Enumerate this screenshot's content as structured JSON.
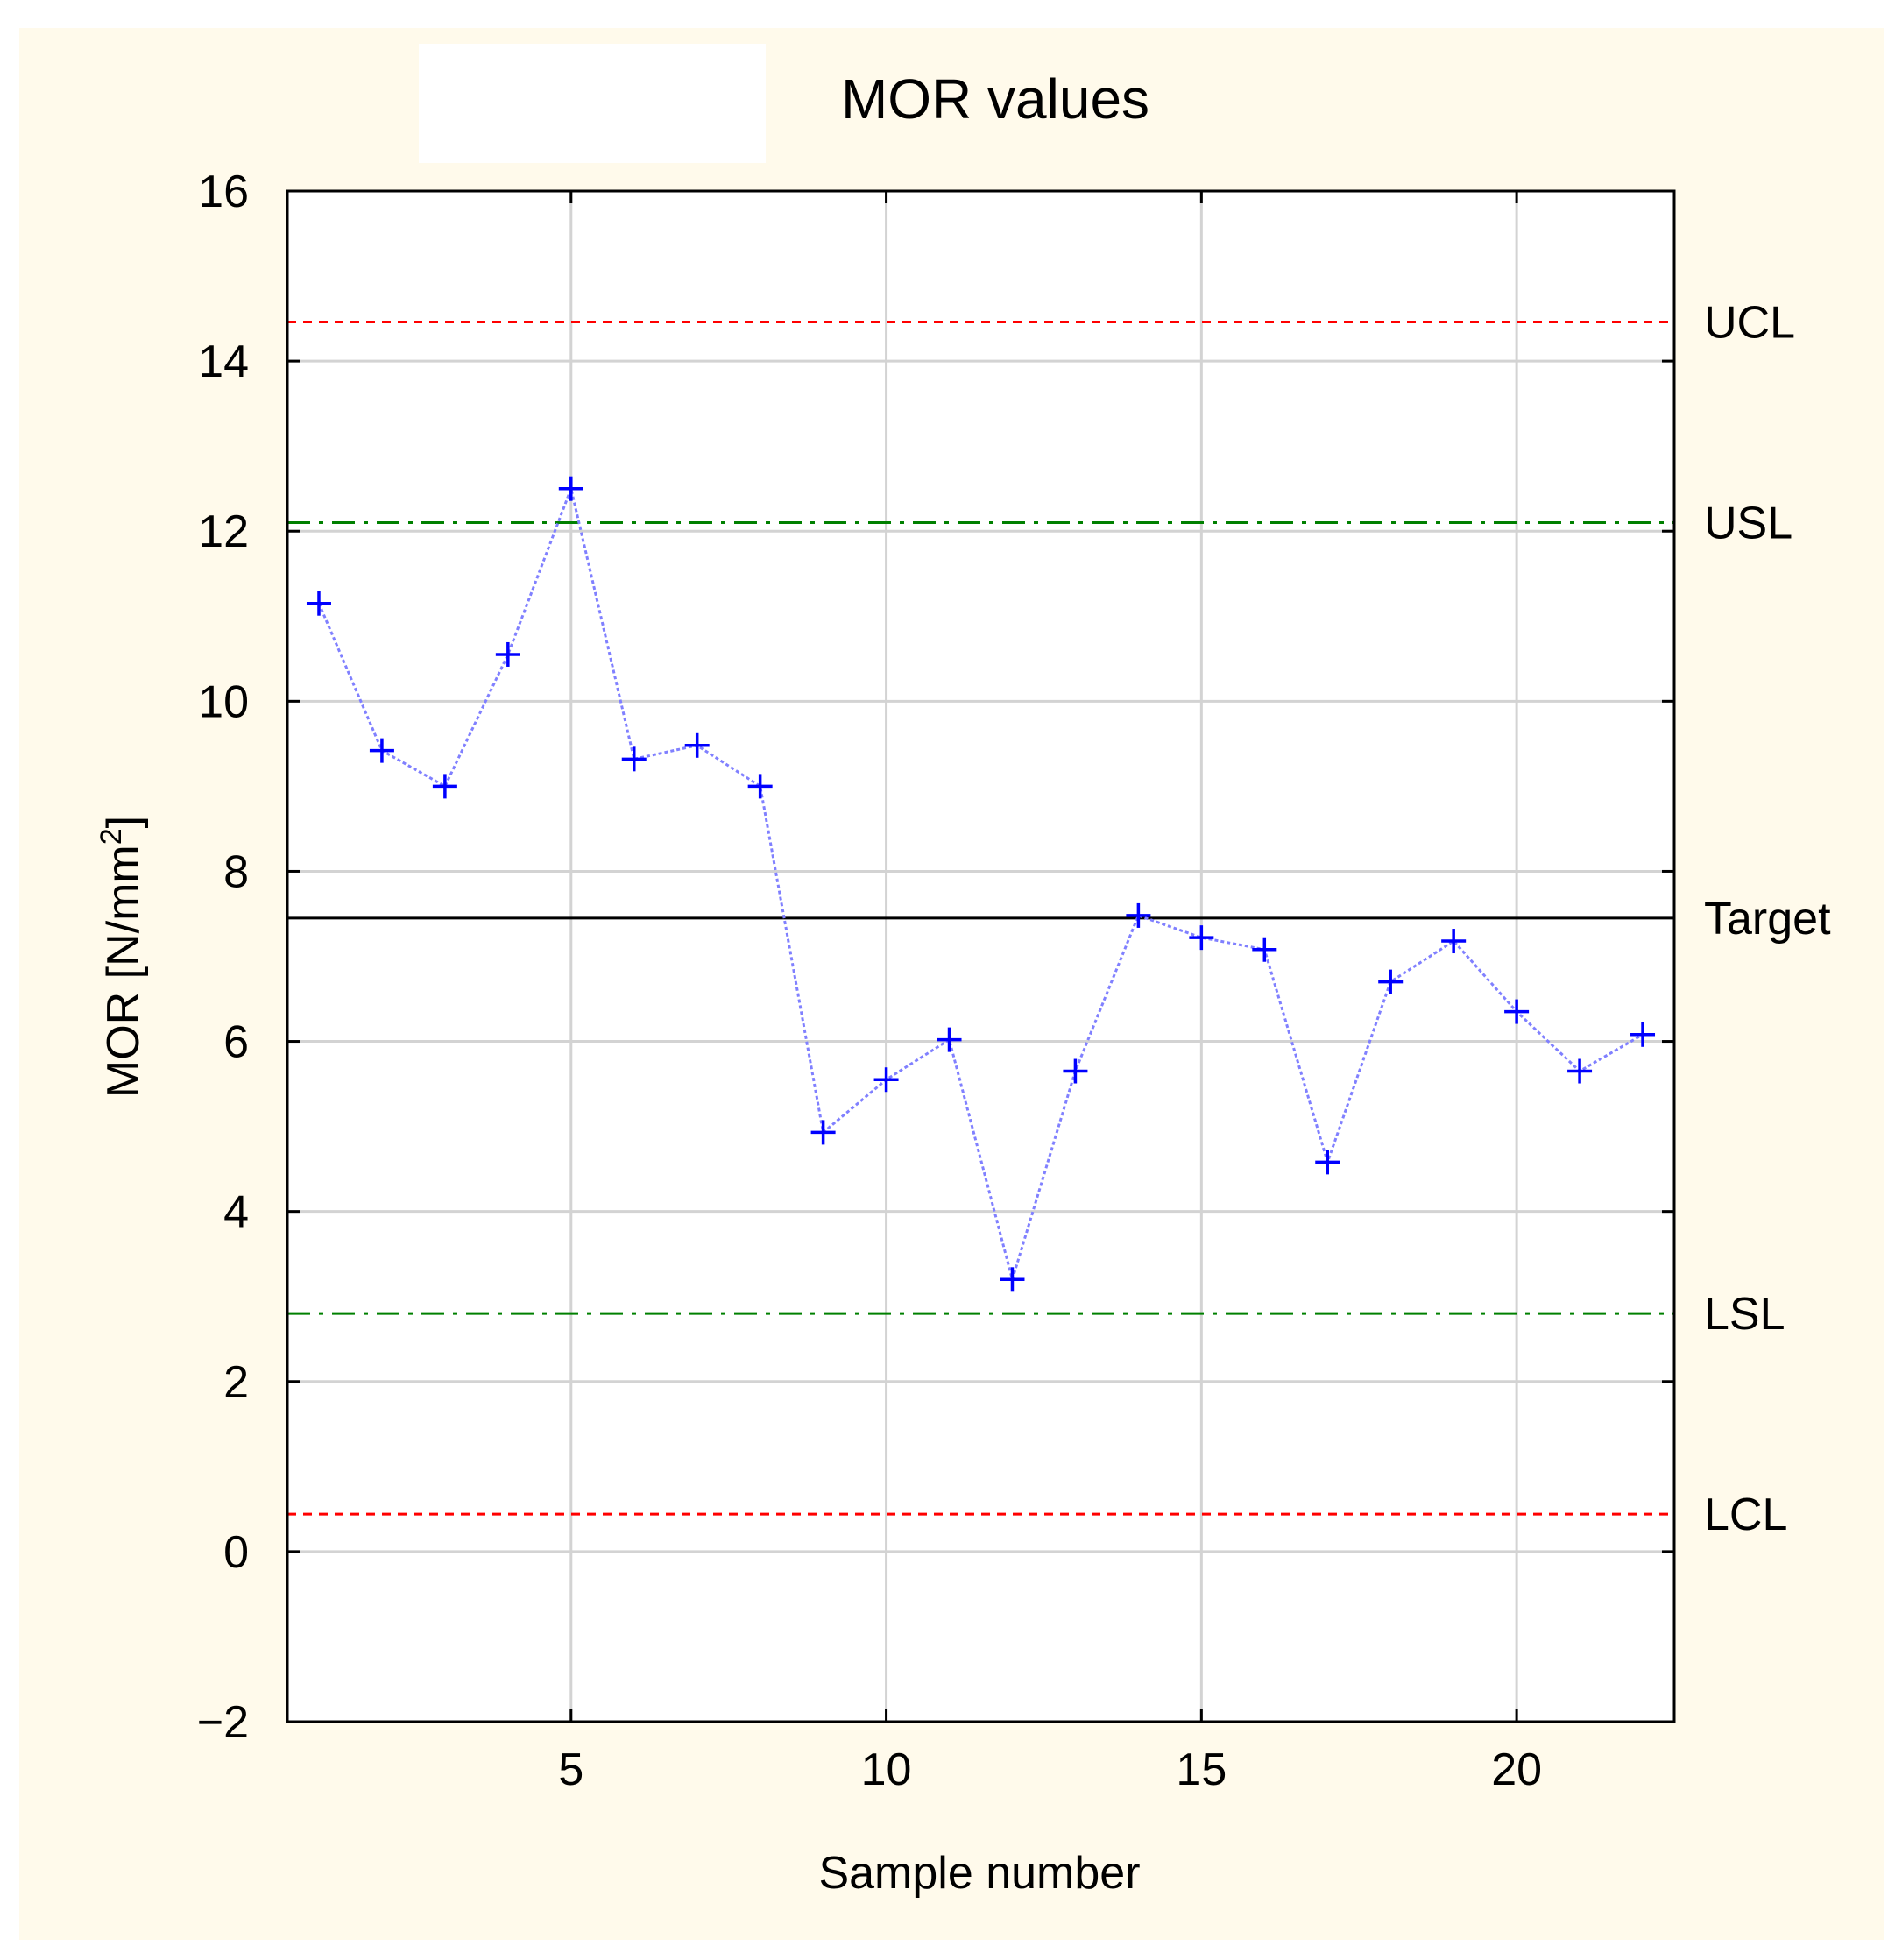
{
  "chart_data": {
    "type": "line",
    "title": "MOR values",
    "xlabel": "Sample number",
    "ylabel": "MOR [N/mm²]",
    "ylabel_base": "MOR [N/mm",
    "ylabel_sup": "2",
    "ylabel_close": "]",
    "xlim": [
      0.5,
      22.5
    ],
    "ylim": [
      -2,
      16
    ],
    "xticks": [
      5,
      10,
      15,
      20
    ],
    "yticks": [
      -2,
      0,
      2,
      4,
      6,
      8,
      10,
      12,
      14,
      16
    ],
    "ytick_labels": [
      "−2",
      "0",
      "2",
      "4",
      "6",
      "8",
      "10",
      "12",
      "14",
      "16"
    ],
    "grid": true,
    "series": [
      {
        "name": "MOR",
        "x": [
          1,
          2,
          3,
          4,
          5,
          6,
          7,
          8,
          9,
          10,
          11,
          12,
          13,
          14,
          15,
          16,
          17,
          18,
          19,
          20,
          21,
          22
        ],
        "values": [
          11.15,
          9.42,
          9.0,
          10.55,
          12.5,
          9.32,
          9.48,
          9.0,
          4.93,
          5.55,
          6.02,
          3.2,
          5.65,
          7.48,
          7.22,
          7.08,
          4.58,
          6.7,
          7.18,
          6.35,
          5.65,
          6.08
        ],
        "color": "#0000ff",
        "line_color": "#8080ff"
      }
    ],
    "reference_lines": [
      {
        "label": "UCL",
        "value": 14.46,
        "color": "#ff0000",
        "style": "dotted"
      },
      {
        "label": "USL",
        "value": 12.1,
        "color": "#008000",
        "style": "dash-dot"
      },
      {
        "label": "Target",
        "value": 7.45,
        "color": "#000000",
        "style": "solid"
      },
      {
        "label": "LSL",
        "value": 2.8,
        "color": "#008000",
        "style": "dash-dot"
      },
      {
        "label": "LCL",
        "value": 0.44,
        "color": "#ff0000",
        "style": "dotted"
      }
    ],
    "colors": {
      "background": "#fffaeb",
      "plot_background": "#ffffff",
      "grid": "#d3d3d3",
      "axis": "#000000"
    }
  }
}
